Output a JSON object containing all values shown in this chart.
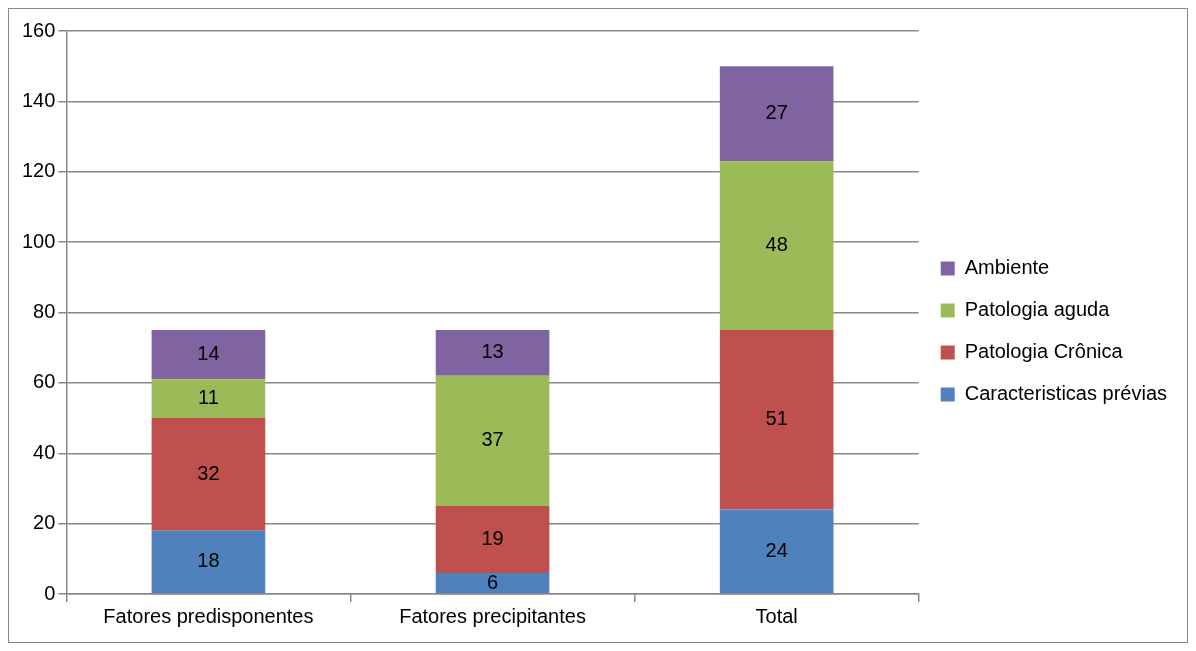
{
  "chart_data": {
    "type": "bar",
    "stacked": true,
    "categories": [
      "Fatores predisponentes",
      "Fatores precipitantes",
      "Total"
    ],
    "series": [
      {
        "name": "Caracteristicas prévias",
        "color": "#4f81bd",
        "values": [
          18,
          6,
          24
        ]
      },
      {
        "name": "Patologia Crônica",
        "color": "#c0504d",
        "values": [
          32,
          19,
          51
        ]
      },
      {
        "name": "Patologia aguda",
        "color": "#9bbb59",
        "values": [
          11,
          37,
          48
        ]
      },
      {
        "name": "Ambiente",
        "color": "#8064a2",
        "values": [
          14,
          13,
          27
        ]
      }
    ],
    "ylim": [
      0,
      160
    ],
    "yticks": [
      0,
      20,
      40,
      60,
      80,
      100,
      120,
      140,
      160
    ],
    "grid": "y",
    "legend": "right",
    "data_labels": true
  }
}
